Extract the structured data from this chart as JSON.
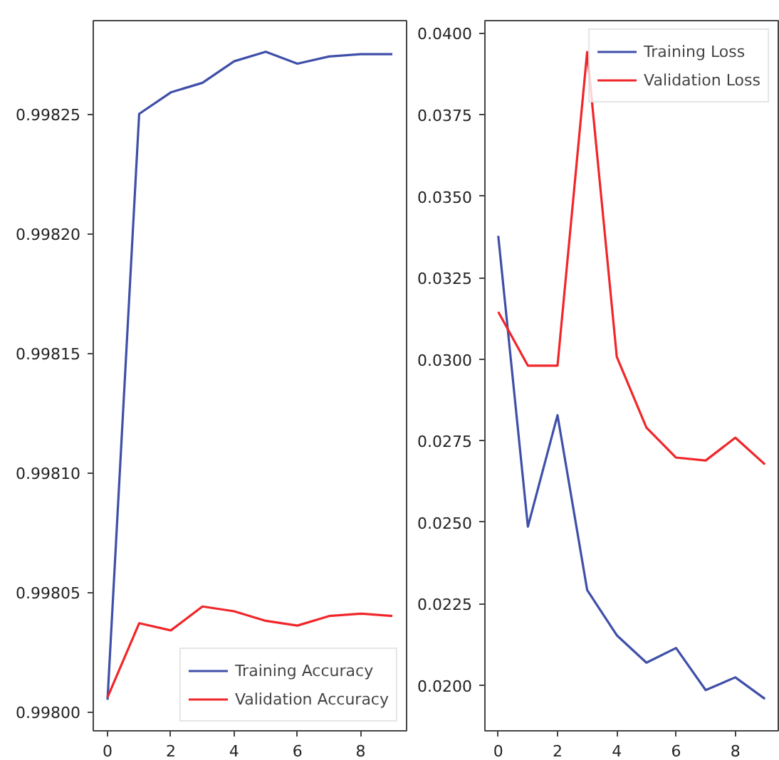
{
  "chart_data": [
    {
      "type": "line",
      "x": [
        0,
        1,
        2,
        3,
        4,
        5,
        6,
        7,
        8,
        9
      ],
      "series": [
        {
          "name": "Training Accuracy",
          "color": "#3f4fa8",
          "values": [
            0.998005,
            0.99825,
            0.998259,
            0.998263,
            0.998272,
            0.998276,
            0.998271,
            0.998274,
            0.998275,
            0.998275
          ]
        },
        {
          "name": "Validation Accuracy",
          "color": "#f0262a",
          "values": [
            0.998006,
            0.998037,
            0.998034,
            0.998044,
            0.998042,
            0.998038,
            0.998036,
            0.99804,
            0.998041,
            0.99804
          ]
        }
      ],
      "xlim": [
        -0.45,
        9.45
      ],
      "ylim": [
        0.997992,
        0.998289
      ],
      "xticks": [
        0,
        2,
        4,
        6,
        8
      ],
      "yticks": [
        {
          "value": 0.998,
          "label": "0.99800"
        },
        {
          "value": 0.99805,
          "label": "0.99805"
        },
        {
          "value": 0.9981,
          "label": "0.99810"
        },
        {
          "value": 0.99815,
          "label": "0.99815"
        },
        {
          "value": 0.9982,
          "label": "0.99820"
        },
        {
          "value": 0.99825,
          "label": "0.99825"
        }
      ],
      "grid": false,
      "legend": "bottom right"
    },
    {
      "type": "line",
      "x": [
        0,
        1,
        2,
        3,
        4,
        5,
        6,
        7,
        8,
        9
      ],
      "series": [
        {
          "name": "Training Loss",
          "color": "#3f4fa8",
          "values": [
            0.03378,
            0.02486,
            0.02828,
            0.02292,
            0.02153,
            0.02069,
            0.02114,
            0.01985,
            0.02024,
            0.01958
          ]
        },
        {
          "name": "Validation Loss",
          "color": "#f0262a",
          "values": [
            0.03145,
            0.0298,
            0.0298,
            0.03942,
            0.03007,
            0.0279,
            0.02698,
            0.02689,
            0.02759,
            0.02677
          ]
        }
      ],
      "xlim": [
        -0.45,
        9.45
      ],
      "ylim": [
        0.0186,
        0.04038
      ],
      "xticks": [
        0,
        2,
        4,
        6,
        8
      ],
      "yticks": [
        {
          "value": 0.02,
          "label": "0.0200"
        },
        {
          "value": 0.0225,
          "label": "0.0225"
        },
        {
          "value": 0.025,
          "label": "0.0250"
        },
        {
          "value": 0.0275,
          "label": "0.0275"
        },
        {
          "value": 0.03,
          "label": "0.0300"
        },
        {
          "value": 0.0325,
          "label": "0.0325"
        },
        {
          "value": 0.035,
          "label": "0.0350"
        },
        {
          "value": 0.0375,
          "label": "0.0375"
        },
        {
          "value": 0.04,
          "label": "0.0400"
        }
      ],
      "grid": false,
      "legend": "top right"
    }
  ]
}
